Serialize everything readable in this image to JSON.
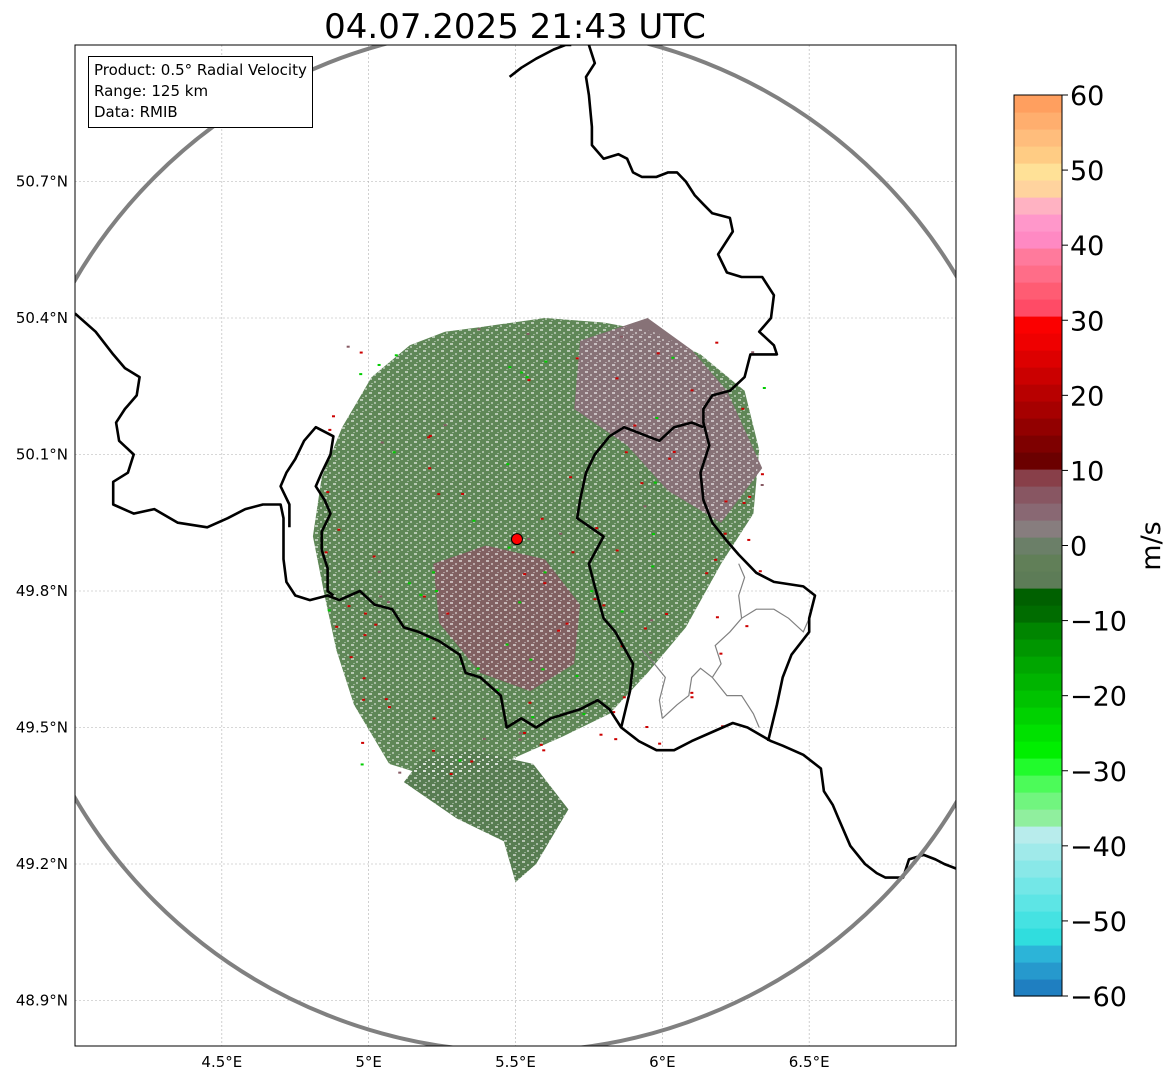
{
  "title": "04.07.2025 21:43 UTC",
  "info": {
    "product": "Product: 0.5° Radial Velocity",
    "range": "Range: 125 km",
    "data": "Data: RMIB"
  },
  "map": {
    "lon_range": [
      4.0,
      7.0
    ],
    "lat_range": [
      48.8,
      51.0
    ],
    "radar_site": {
      "lon": 5.505,
      "lat": 49.914
    },
    "range_ring_color": "#808080",
    "border_color": "#000000",
    "grid": true,
    "lon_ticks": [
      {
        "value": 4.5,
        "label": "4.5°E"
      },
      {
        "value": 5.0,
        "label": "5°E"
      },
      {
        "value": 5.5,
        "label": "5.5°E"
      },
      {
        "value": 6.0,
        "label": "6°E"
      },
      {
        "value": 6.5,
        "label": "6.5°E"
      }
    ],
    "lat_ticks": [
      {
        "value": 50.7,
        "label": "50.7°N"
      },
      {
        "value": 50.4,
        "label": "50.4°N"
      },
      {
        "value": 50.1,
        "label": "50.1°N"
      },
      {
        "value": 49.8,
        "label": "49.8°N"
      },
      {
        "value": 49.5,
        "label": "49.5°N"
      },
      {
        "value": 49.2,
        "label": "49.2°N"
      },
      {
        "value": 48.9,
        "label": "48.9°N"
      }
    ],
    "borders": [
      [
        [
          4.0,
          50.41
        ],
        [
          4.07,
          50.37
        ],
        [
          4.13,
          50.32
        ],
        [
          4.17,
          50.29
        ],
        [
          4.22,
          50.27
        ],
        [
          4.21,
          50.23
        ],
        [
          4.17,
          50.2
        ],
        [
          4.14,
          50.17
        ],
        [
          4.15,
          50.13
        ],
        [
          4.2,
          50.1
        ],
        [
          4.18,
          50.06
        ],
        [
          4.13,
          50.04
        ],
        [
          4.13,
          49.99
        ],
        [
          4.2,
          49.97
        ],
        [
          4.27,
          49.98
        ],
        [
          4.35,
          49.95
        ],
        [
          4.45,
          49.94
        ],
        [
          4.52,
          49.96
        ],
        [
          4.58,
          49.98
        ],
        [
          4.64,
          49.99
        ],
        [
          4.7,
          49.99
        ],
        [
          4.71,
          49.96
        ],
        [
          4.71,
          49.92
        ],
        [
          4.71,
          49.87
        ],
        [
          4.72,
          49.82
        ],
        [
          4.75,
          49.79
        ],
        [
          4.8,
          49.78
        ],
        [
          4.86,
          49.79
        ],
        [
          4.9,
          49.78
        ],
        [
          4.97,
          49.8
        ],
        [
          5.02,
          49.77
        ],
        [
          5.08,
          49.76
        ],
        [
          5.12,
          49.72
        ],
        [
          5.17,
          49.71
        ],
        [
          5.24,
          49.69
        ],
        [
          5.31,
          49.66
        ],
        [
          5.33,
          49.62
        ],
        [
          5.38,
          49.61
        ],
        [
          5.45,
          49.57
        ],
        [
          5.47,
          49.5
        ],
        [
          5.52,
          49.52
        ],
        [
          5.57,
          49.5
        ],
        [
          5.62,
          49.52
        ],
        [
          5.72,
          49.54
        ],
        [
          5.78,
          49.56
        ],
        [
          5.82,
          49.54
        ],
        [
          5.86,
          49.5
        ],
        [
          5.92,
          49.47
        ],
        [
          5.98,
          49.45
        ],
        [
          6.04,
          49.45
        ],
        [
          6.1,
          49.47
        ],
        [
          6.17,
          49.49
        ],
        [
          6.24,
          49.51
        ],
        [
          6.29,
          49.5
        ],
        [
          6.37,
          49.47
        ],
        [
          6.41,
          49.46
        ],
        [
          6.48,
          49.44
        ],
        [
          6.54,
          49.41
        ],
        [
          6.55,
          49.36
        ],
        [
          6.58,
          49.33
        ],
        [
          6.6,
          49.3
        ],
        [
          6.64,
          49.24
        ],
        [
          6.69,
          49.2
        ],
        [
          6.73,
          49.18
        ],
        [
          6.76,
          49.17
        ],
        [
          6.82,
          49.17
        ],
        [
          6.84,
          49.21
        ],
        [
          6.89,
          49.22
        ],
        [
          6.93,
          49.21
        ],
        [
          6.96,
          49.2
        ],
        [
          7.0,
          49.19
        ]
      ],
      [
        [
          4.73,
          49.94
        ],
        [
          4.73,
          49.99
        ],
        [
          4.7,
          50.03
        ],
        [
          4.72,
          50.06
        ],
        [
          4.75,
          50.09
        ],
        [
          4.78,
          50.13
        ],
        [
          4.82,
          50.16
        ],
        [
          4.88,
          50.14
        ],
        [
          4.87,
          50.1
        ],
        [
          4.84,
          50.06
        ],
        [
          4.82,
          50.03
        ],
        [
          4.85,
          50.0
        ],
        [
          4.87,
          49.97
        ],
        [
          4.84,
          49.93
        ],
        [
          4.84,
          49.89
        ],
        [
          4.86,
          49.85
        ],
        [
          4.86,
          49.8
        ],
        [
          4.88,
          49.79
        ]
      ],
      [
        [
          5.48,
          50.93
        ],
        [
          5.52,
          50.95
        ],
        [
          5.57,
          50.97
        ],
        [
          5.63,
          50.99
        ],
        [
          5.67,
          51.0
        ],
        [
          5.69,
          51.0
        ]
      ],
      [
        [
          5.75,
          51.0
        ],
        [
          5.77,
          50.96
        ],
        [
          5.74,
          50.93
        ],
        [
          5.75,
          50.89
        ],
        [
          5.76,
          50.82
        ],
        [
          5.76,
          50.78
        ],
        [
          5.8,
          50.75
        ],
        [
          5.85,
          50.76
        ],
        [
          5.88,
          50.75
        ],
        [
          5.9,
          50.72
        ],
        [
          5.93,
          50.71
        ],
        [
          5.98,
          50.71
        ],
        [
          6.02,
          50.72
        ],
        [
          6.05,
          50.72
        ],
        [
          6.08,
          50.7
        ],
        [
          6.11,
          50.67
        ],
        [
          6.14,
          50.65
        ],
        [
          6.17,
          50.63
        ],
        [
          6.23,
          50.62
        ],
        [
          6.24,
          50.59
        ],
        [
          6.19,
          50.54
        ],
        [
          6.22,
          50.5
        ],
        [
          6.27,
          50.49
        ],
        [
          6.34,
          50.49
        ],
        [
          6.38,
          50.45
        ],
        [
          6.37,
          50.4
        ],
        [
          6.33,
          50.37
        ],
        [
          6.38,
          50.34
        ],
        [
          6.39,
          50.32
        ],
        [
          6.33,
          50.32
        ],
        [
          6.3,
          50.32
        ],
        [
          6.28,
          50.27
        ],
        [
          6.23,
          50.24
        ],
        [
          6.17,
          50.23
        ],
        [
          6.14,
          50.2
        ],
        [
          6.14,
          50.17
        ],
        [
          6.16,
          50.12
        ],
        [
          6.13,
          50.06
        ],
        [
          6.14,
          50.0
        ],
        [
          6.17,
          49.95
        ],
        [
          6.22,
          49.91
        ],
        [
          6.26,
          49.88
        ],
        [
          6.32,
          49.84
        ],
        [
          6.38,
          49.82
        ],
        [
          6.48,
          49.81
        ],
        [
          6.52,
          49.79
        ],
        [
          6.5,
          49.74
        ],
        [
          6.5,
          49.71
        ],
        [
          6.44,
          49.66
        ],
        [
          6.41,
          49.61
        ],
        [
          6.39,
          49.55
        ],
        [
          6.36,
          49.47
        ]
      ],
      [
        [
          5.82,
          50.14
        ],
        [
          5.87,
          50.16
        ],
        [
          5.95,
          50.14
        ],
        [
          5.99,
          50.13
        ],
        [
          6.04,
          50.16
        ],
        [
          6.1,
          50.17
        ],
        [
          6.14,
          50.16
        ]
      ],
      [
        [
          5.82,
          50.14
        ],
        [
          5.77,
          50.1
        ],
        [
          5.74,
          50.06
        ],
        [
          5.72,
          50.0
        ],
        [
          5.71,
          49.96
        ],
        [
          5.8,
          49.92
        ],
        [
          5.75,
          49.86
        ],
        [
          5.77,
          49.81
        ],
        [
          5.8,
          49.74
        ],
        [
          5.84,
          49.71
        ],
        [
          5.9,
          49.64
        ],
        [
          5.89,
          49.58
        ],
        [
          5.86,
          49.5
        ]
      ]
    ],
    "subregions": [
      [
        [
          6.0,
          49.52
        ],
        [
          6.05,
          49.55
        ],
        [
          6.09,
          49.57
        ],
        [
          6.1,
          49.61
        ],
        [
          6.13,
          49.63
        ],
        [
          6.17,
          49.61
        ],
        [
          6.22,
          49.57
        ],
        [
          6.27,
          49.57
        ],
        [
          6.31,
          49.53
        ],
        [
          6.33,
          49.5
        ]
      ],
      [
        [
          6.17,
          49.61
        ],
        [
          6.2,
          49.64
        ],
        [
          6.18,
          49.68
        ],
        [
          6.23,
          49.71
        ],
        [
          6.27,
          49.74
        ],
        [
          6.32,
          49.76
        ],
        [
          6.38,
          49.76
        ],
        [
          6.43,
          49.74
        ],
        [
          6.48,
          49.71
        ],
        [
          6.5,
          49.74
        ]
      ],
      [
        [
          6.27,
          49.74
        ],
        [
          6.26,
          49.79
        ],
        [
          6.28,
          49.83
        ],
        [
          6.26,
          49.86
        ]
      ],
      [
        [
          6.0,
          49.52
        ],
        [
          5.99,
          49.56
        ],
        [
          6.01,
          49.61
        ],
        [
          5.96,
          49.65
        ],
        [
          5.93,
          49.67
        ]
      ]
    ],
    "radar_echo": {
      "main": [
        [
          5.38,
          50.38
        ],
        [
          5.6,
          50.4
        ],
        [
          5.8,
          50.39
        ],
        [
          5.97,
          50.37
        ],
        [
          6.13,
          50.32
        ],
        [
          6.28,
          50.24
        ],
        [
          6.33,
          50.11
        ],
        [
          6.31,
          49.97
        ],
        [
          6.2,
          49.86
        ],
        [
          6.08,
          49.72
        ],
        [
          5.95,
          49.62
        ],
        [
          5.82,
          49.53
        ],
        [
          5.66,
          49.48
        ],
        [
          5.52,
          49.44
        ],
        [
          5.38,
          49.4
        ],
        [
          5.22,
          49.39
        ],
        [
          5.07,
          49.42
        ],
        [
          4.95,
          49.55
        ],
        [
          4.89,
          49.67
        ],
        [
          4.85,
          49.79
        ],
        [
          4.81,
          49.92
        ],
        [
          4.84,
          50.05
        ],
        [
          4.91,
          50.16
        ],
        [
          5.01,
          50.27
        ],
        [
          5.14,
          50.34
        ],
        [
          5.26,
          50.37
        ]
      ],
      "south_tail": [
        [
          5.12,
          49.38
        ],
        [
          5.3,
          49.3
        ],
        [
          5.46,
          49.25
        ],
        [
          5.5,
          49.16
        ],
        [
          5.57,
          49.2
        ],
        [
          5.68,
          49.32
        ],
        [
          5.56,
          49.42
        ],
        [
          5.35,
          49.45
        ],
        [
          5.18,
          49.43
        ]
      ],
      "outgoing_ne": [
        [
          5.72,
          50.35
        ],
        [
          5.95,
          50.4
        ],
        [
          6.1,
          50.33
        ],
        [
          6.22,
          50.24
        ],
        [
          6.34,
          50.07
        ],
        [
          6.2,
          49.95
        ],
        [
          6.02,
          50.02
        ],
        [
          5.88,
          50.12
        ],
        [
          5.7,
          50.2
        ]
      ],
      "outgoing_center": [
        [
          5.22,
          49.86
        ],
        [
          5.4,
          49.9
        ],
        [
          5.6,
          49.87
        ],
        [
          5.72,
          49.77
        ],
        [
          5.7,
          49.64
        ],
        [
          5.55,
          49.58
        ],
        [
          5.38,
          49.62
        ],
        [
          5.24,
          49.73
        ]
      ]
    },
    "echo_colors": {
      "inbound_light": "#5f8757",
      "inbound_dark": "#587d52",
      "outbound_light": "#877277",
      "outbound_dark": "#875a64",
      "strong_outbound": "#cc0000",
      "strong_inbound": "#00cc00"
    }
  },
  "colorbar": {
    "label": "m/s",
    "min": -60,
    "max": 60,
    "ticks": [
      {
        "value": 60,
        "label": "60"
      },
      {
        "value": 50,
        "label": "50"
      },
      {
        "value": 40,
        "label": "40"
      },
      {
        "value": 30,
        "label": "30"
      },
      {
        "value": 20,
        "label": "20"
      },
      {
        "value": 10,
        "label": "10"
      },
      {
        "value": 0,
        "label": "0"
      },
      {
        "value": -10,
        "label": "−10"
      },
      {
        "value": -20,
        "label": "−20"
      },
      {
        "value": -30,
        "label": "−30"
      },
      {
        "value": -40,
        "label": "−40"
      },
      {
        "value": -50,
        "label": "−50"
      },
      {
        "value": -60,
        "label": "−60"
      }
    ],
    "colors": [
      "#1f7fc1",
      "#2699cd",
      "#2cb4d8",
      "#30ddde",
      "#45e2e2",
      "#5de5e5",
      "#73e7e7",
      "#89e8e8",
      "#a0eaea",
      "#b8ecec",
      "#90ef9e",
      "#71f57f",
      "#4cfb59",
      "#21fb2c",
      "#00ef00",
      "#00e100",
      "#00d200",
      "#00c300",
      "#00b400",
      "#00a600",
      "#009600",
      "#008500",
      "#006c00",
      "#006000",
      "#5d7c57",
      "#617f58",
      "#6b7f68",
      "#877d7e",
      "#896873",
      "#885662",
      "#883f49",
      "#6b0000",
      "#7e0000",
      "#920000",
      "#a60000",
      "#b80000",
      "#cb0000",
      "#dd0000",
      "#ef0000",
      "#fb0000",
      "#ff4b66",
      "#ff5c73",
      "#ff6d88",
      "#ff7a9c",
      "#ff89c3",
      "#ff97ca",
      "#ffb2c2",
      "#ffd39e",
      "#ffe197",
      "#ffcc84",
      "#ffbd7c",
      "#ffae6e",
      "#ff9f5f"
    ]
  }
}
